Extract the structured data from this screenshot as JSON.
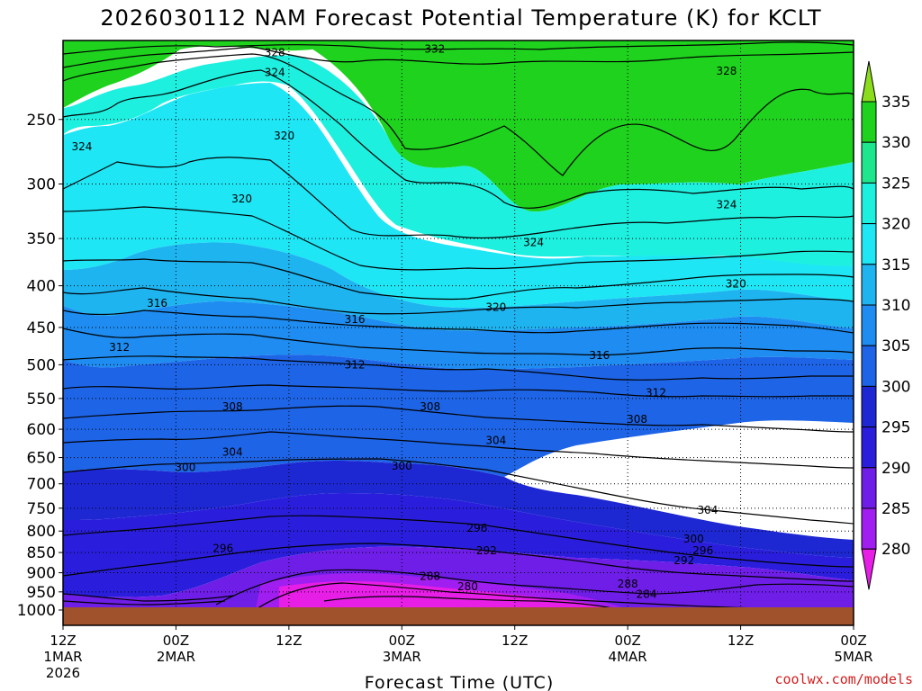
{
  "chart_data": {
    "type": "heatmap",
    "title": "2026030112 NAM Forecast Potential Temperature (K) for KCLT",
    "xlabel": "Forecast Time (UTC)",
    "ylabel": "",
    "credit": "coolwx.com/models",
    "y_ticks": [
      "250",
      "300",
      "350",
      "400",
      "450",
      "500",
      "550",
      "600",
      "650",
      "700",
      "750",
      "800",
      "850",
      "900",
      "950",
      "1000"
    ],
    "x_ticks": [
      {
        "label": "12Z",
        "sub": "1MAR",
        "sub2": "2026"
      },
      {
        "label": "00Z",
        "sub": "2MAR",
        "sub2": ""
      },
      {
        "label": "12Z",
        "sub": "",
        "sub2": ""
      },
      {
        "label": "00Z",
        "sub": "3MAR",
        "sub2": ""
      },
      {
        "label": "12Z",
        "sub": "",
        "sub2": ""
      },
      {
        "label": "00Z",
        "sub": "4MAR",
        "sub2": ""
      },
      {
        "label": "12Z",
        "sub": "",
        "sub2": ""
      },
      {
        "label": "00Z",
        "sub": "5MAR",
        "sub2": ""
      }
    ],
    "x_hours": [
      0,
      12,
      24,
      36,
      48,
      60,
      72,
      84
    ],
    "y_pressure": [
      250,
      300,
      350,
      400,
      450,
      500,
      550,
      600,
      650,
      700,
      750,
      800,
      850,
      900,
      950,
      1000
    ],
    "ylim": [
      200,
      1000
    ],
    "xlim": [
      0,
      84
    ],
    "colorbar": {
      "labels": [
        "335",
        "330",
        "325",
        "320",
        "315",
        "310",
        "305",
        "300",
        "295",
        "290",
        "285",
        "280"
      ],
      "colors": [
        "#1ed21e",
        "#1ee68c",
        "#1ef0e0",
        "#1ee6f5",
        "#1eb4f0",
        "#1e8cf0",
        "#1e64e6",
        "#1e28d2",
        "#2a1edc",
        "#6e1ee6",
        "#a01ef0",
        "#e61ee6"
      ],
      "top_arrow_color": "#8cdc1e",
      "bottom_arrow_color": "#e61ee6"
    },
    "contour_labels": [
      {
        "text": "332",
        "x_hr": 39.5,
        "p": 205
      },
      {
        "text": "328",
        "x_hr": 22.5,
        "p": 207
      },
      {
        "text": "328",
        "x_hr": 70.5,
        "p": 218
      },
      {
        "text": "324",
        "x_hr": 22.5,
        "p": 219
      },
      {
        "text": "320",
        "x_hr": 23.5,
        "p": 262
      },
      {
        "text": "324",
        "x_hr": 2,
        "p": 270
      },
      {
        "text": "320",
        "x_hr": 19,
        "p": 313
      },
      {
        "text": "324",
        "x_hr": 70.5,
        "p": 318
      },
      {
        "text": "324",
        "x_hr": 50,
        "p": 354
      },
      {
        "text": "320",
        "x_hr": 71.5,
        "p": 398
      },
      {
        "text": "316",
        "x_hr": 10,
        "p": 420
      },
      {
        "text": "320",
        "x_hr": 46,
        "p": 425
      },
      {
        "text": "316",
        "x_hr": 31,
        "p": 440
      },
      {
        "text": "312",
        "x_hr": 6,
        "p": 476
      },
      {
        "text": "316",
        "x_hr": 57,
        "p": 487
      },
      {
        "text": "312",
        "x_hr": 31,
        "p": 500
      },
      {
        "text": "312",
        "x_hr": 63,
        "p": 541
      },
      {
        "text": "308",
        "x_hr": 18,
        "p": 563
      },
      {
        "text": "308",
        "x_hr": 39,
        "p": 563
      },
      {
        "text": "308",
        "x_hr": 61,
        "p": 583
      },
      {
        "text": "304",
        "x_hr": 46,
        "p": 619
      },
      {
        "text": "304",
        "x_hr": 18,
        "p": 640
      },
      {
        "text": "300",
        "x_hr": 13,
        "p": 668
      },
      {
        "text": "300",
        "x_hr": 36,
        "p": 666
      },
      {
        "text": "304",
        "x_hr": 68.5,
        "p": 754
      },
      {
        "text": "296",
        "x_hr": 44,
        "p": 793
      },
      {
        "text": "300",
        "x_hr": 67,
        "p": 818
      },
      {
        "text": "296",
        "x_hr": 17,
        "p": 840
      },
      {
        "text": "292",
        "x_hr": 45,
        "p": 846
      },
      {
        "text": "296",
        "x_hr": 68,
        "p": 846
      },
      {
        "text": "292",
        "x_hr": 66,
        "p": 870
      },
      {
        "text": "288",
        "x_hr": 39,
        "p": 909
      },
      {
        "text": "280",
        "x_hr": 43,
        "p": 936
      },
      {
        "text": "288",
        "x_hr": 60,
        "p": 929
      },
      {
        "text": "284",
        "x_hr": 62,
        "p": 957
      }
    ]
  }
}
